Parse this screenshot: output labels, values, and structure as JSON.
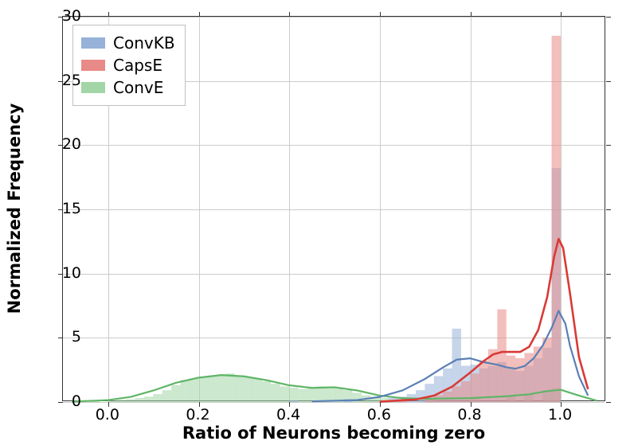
{
  "chart": {
    "type": "histogram-with-kde",
    "xlabel": "Ratio of Neurons becoming zero",
    "ylabel": "Normalized Frequency",
    "label_fontsize": 21,
    "label_fontweight": "bold",
    "tick_fontsize": 19,
    "xlim": [
      -0.1,
      1.1
    ],
    "ylim": [
      0,
      30
    ],
    "xticks": [
      0.0,
      0.2,
      0.4,
      0.6,
      0.8,
      1.0
    ],
    "yticks": [
      0,
      5,
      10,
      15,
      20,
      25,
      30
    ],
    "background_color": "#ffffff",
    "grid_color": "#cccccc",
    "border_color": "#333333",
    "legend": {
      "position": "upper-left",
      "items": [
        {
          "label": "ConvKB",
          "color": "#97b2d8"
        },
        {
          "label": "CapsE",
          "color": "#e88a87"
        },
        {
          "label": "ConvE",
          "color": "#a2d6a6"
        }
      ]
    },
    "series": {
      "ConvKB": {
        "hist_color": "#97b2d8",
        "hist_alpha": 0.55,
        "kde_color": "#5a7fb5",
        "kde_width": 2.2,
        "bins": [
          {
            "x0": 0.4,
            "x1": 0.42,
            "y": 0.1
          },
          {
            "x0": 0.52,
            "x1": 0.54,
            "y": 0.2
          },
          {
            "x0": 0.62,
            "x1": 0.64,
            "y": 0.3
          },
          {
            "x0": 0.64,
            "x1": 0.66,
            "y": 0.4
          },
          {
            "x0": 0.66,
            "x1": 0.68,
            "y": 0.6
          },
          {
            "x0": 0.68,
            "x1": 0.7,
            "y": 0.9
          },
          {
            "x0": 0.7,
            "x1": 0.72,
            "y": 1.4
          },
          {
            "x0": 0.72,
            "x1": 0.74,
            "y": 2.0
          },
          {
            "x0": 0.74,
            "x1": 0.76,
            "y": 2.6
          },
          {
            "x0": 0.76,
            "x1": 0.78,
            "y": 5.7
          },
          {
            "x0": 0.78,
            "x1": 0.8,
            "y": 2.8
          },
          {
            "x0": 0.8,
            "x1": 0.82,
            "y": 2.9
          },
          {
            "x0": 0.82,
            "x1": 0.84,
            "y": 2.6
          },
          {
            "x0": 0.84,
            "x1": 0.86,
            "y": 2.8
          },
          {
            "x0": 0.86,
            "x1": 0.88,
            "y": 3.1
          },
          {
            "x0": 0.88,
            "x1": 0.9,
            "y": 2.6
          },
          {
            "x0": 0.9,
            "x1": 0.92,
            "y": 2.4
          },
          {
            "x0": 0.92,
            "x1": 0.94,
            "y": 2.8
          },
          {
            "x0": 0.94,
            "x1": 0.96,
            "y": 3.4
          },
          {
            "x0": 0.96,
            "x1": 0.98,
            "y": 4.2
          },
          {
            "x0": 0.98,
            "x1": 1.0,
            "y": 18.2
          }
        ],
        "kde": [
          {
            "x": 0.45,
            "y": 0.05
          },
          {
            "x": 0.55,
            "y": 0.15
          },
          {
            "x": 0.6,
            "y": 0.4
          },
          {
            "x": 0.65,
            "y": 0.9
          },
          {
            "x": 0.7,
            "y": 1.8
          },
          {
            "x": 0.74,
            "y": 2.7
          },
          {
            "x": 0.77,
            "y": 3.3
          },
          {
            "x": 0.8,
            "y": 3.4
          },
          {
            "x": 0.83,
            "y": 3.1
          },
          {
            "x": 0.86,
            "y": 2.9
          },
          {
            "x": 0.88,
            "y": 2.7
          },
          {
            "x": 0.9,
            "y": 2.6
          },
          {
            "x": 0.92,
            "y": 2.8
          },
          {
            "x": 0.94,
            "y": 3.4
          },
          {
            "x": 0.96,
            "y": 4.4
          },
          {
            "x": 0.98,
            "y": 5.8
          },
          {
            "x": 0.995,
            "y": 7.1
          },
          {
            "x": 1.01,
            "y": 6.1
          },
          {
            "x": 1.02,
            "y": 4.4
          },
          {
            "x": 1.04,
            "y": 2.0
          },
          {
            "x": 1.06,
            "y": 0.5
          }
        ]
      },
      "CapsE": {
        "hist_color": "#e88a87",
        "hist_alpha": 0.55,
        "kde_color": "#d93a36",
        "kde_width": 2.6,
        "bins": [
          {
            "x0": 0.64,
            "x1": 0.66,
            "y": 0.15
          },
          {
            "x0": 0.7,
            "x1": 0.72,
            "y": 0.3
          },
          {
            "x0": 0.72,
            "x1": 0.74,
            "y": 0.5
          },
          {
            "x0": 0.74,
            "x1": 0.76,
            "y": 0.8
          },
          {
            "x0": 0.76,
            "x1": 0.78,
            "y": 1.2
          },
          {
            "x0": 0.78,
            "x1": 0.8,
            "y": 1.6
          },
          {
            "x0": 0.8,
            "x1": 0.82,
            "y": 2.2
          },
          {
            "x0": 0.82,
            "x1": 0.84,
            "y": 3.2
          },
          {
            "x0": 0.84,
            "x1": 0.86,
            "y": 4.1
          },
          {
            "x0": 0.86,
            "x1": 0.88,
            "y": 7.2
          },
          {
            "x0": 0.88,
            "x1": 0.9,
            "y": 3.6
          },
          {
            "x0": 0.9,
            "x1": 0.92,
            "y": 3.4
          },
          {
            "x0": 0.92,
            "x1": 0.94,
            "y": 3.8
          },
          {
            "x0": 0.94,
            "x1": 0.96,
            "y": 4.3
          },
          {
            "x0": 0.96,
            "x1": 0.98,
            "y": 5.0
          },
          {
            "x0": 0.98,
            "x1": 1.0,
            "y": 28.5
          }
        ],
        "kde": [
          {
            "x": 0.6,
            "y": 0.03
          },
          {
            "x": 0.68,
            "y": 0.2
          },
          {
            "x": 0.72,
            "y": 0.5
          },
          {
            "x": 0.76,
            "y": 1.2
          },
          {
            "x": 0.8,
            "y": 2.3
          },
          {
            "x": 0.83,
            "y": 3.2
          },
          {
            "x": 0.85,
            "y": 3.7
          },
          {
            "x": 0.87,
            "y": 3.9
          },
          {
            "x": 0.89,
            "y": 3.9
          },
          {
            "x": 0.91,
            "y": 3.9
          },
          {
            "x": 0.93,
            "y": 4.3
          },
          {
            "x": 0.95,
            "y": 5.6
          },
          {
            "x": 0.97,
            "y": 8.2
          },
          {
            "x": 0.985,
            "y": 11.3
          },
          {
            "x": 0.995,
            "y": 12.7
          },
          {
            "x": 1.005,
            "y": 12.0
          },
          {
            "x": 1.02,
            "y": 8.5
          },
          {
            "x": 1.04,
            "y": 3.5
          },
          {
            "x": 1.06,
            "y": 1.0
          }
        ]
      },
      "ConvE": {
        "hist_color": "#a2d6a6",
        "hist_alpha": 0.55,
        "kde_color": "#5fb567",
        "kde_width": 2.2,
        "bins": [
          {
            "x0": -0.04,
            "x1": -0.02,
            "y": 0.1
          },
          {
            "x0": 0.0,
            "x1": 0.02,
            "y": 0.1
          },
          {
            "x0": 0.02,
            "x1": 0.04,
            "y": 0.15
          },
          {
            "x0": 0.04,
            "x1": 0.06,
            "y": 0.2
          },
          {
            "x0": 0.06,
            "x1": 0.08,
            "y": 0.3
          },
          {
            "x0": 0.08,
            "x1": 0.1,
            "y": 0.4
          },
          {
            "x0": 0.1,
            "x1": 0.12,
            "y": 0.6
          },
          {
            "x0": 0.12,
            "x1": 0.14,
            "y": 0.9
          },
          {
            "x0": 0.14,
            "x1": 0.16,
            "y": 1.3
          },
          {
            "x0": 0.16,
            "x1": 0.18,
            "y": 1.7
          },
          {
            "x0": 0.18,
            "x1": 0.2,
            "y": 1.8
          },
          {
            "x0": 0.2,
            "x1": 0.22,
            "y": 1.9
          },
          {
            "x0": 0.22,
            "x1": 0.24,
            "y": 2.0
          },
          {
            "x0": 0.24,
            "x1": 0.26,
            "y": 2.1
          },
          {
            "x0": 0.26,
            "x1": 0.28,
            "y": 2.2
          },
          {
            "x0": 0.28,
            "x1": 0.3,
            "y": 2.0
          },
          {
            "x0": 0.3,
            "x1": 0.32,
            "y": 1.9
          },
          {
            "x0": 0.32,
            "x1": 0.34,
            "y": 1.8
          },
          {
            "x0": 0.34,
            "x1": 0.36,
            "y": 1.6
          },
          {
            "x0": 0.36,
            "x1": 0.38,
            "y": 1.4
          },
          {
            "x0": 0.38,
            "x1": 0.4,
            "y": 1.2
          },
          {
            "x0": 0.4,
            "x1": 0.42,
            "y": 1.1
          },
          {
            "x0": 0.42,
            "x1": 0.44,
            "y": 1.0
          },
          {
            "x0": 0.44,
            "x1": 0.46,
            "y": 1.1
          },
          {
            "x0": 0.46,
            "x1": 0.48,
            "y": 1.2
          },
          {
            "x0": 0.48,
            "x1": 0.5,
            "y": 1.2
          },
          {
            "x0": 0.5,
            "x1": 0.52,
            "y": 1.1
          },
          {
            "x0": 0.52,
            "x1": 0.54,
            "y": 0.9
          },
          {
            "x0": 0.54,
            "x1": 0.56,
            "y": 0.7
          },
          {
            "x0": 0.56,
            "x1": 0.58,
            "y": 0.5
          },
          {
            "x0": 0.58,
            "x1": 0.6,
            "y": 0.4
          },
          {
            "x0": 0.6,
            "x1": 0.62,
            "y": 0.3
          },
          {
            "x0": 0.7,
            "x1": 0.72,
            "y": 0.2
          },
          {
            "x0": 0.8,
            "x1": 0.82,
            "y": 0.3
          },
          {
            "x0": 0.88,
            "x1": 0.9,
            "y": 0.4
          },
          {
            "x0": 0.92,
            "x1": 0.94,
            "y": 0.6
          },
          {
            "x0": 0.96,
            "x1": 0.98,
            "y": 0.9
          },
          {
            "x0": 0.98,
            "x1": 1.0,
            "y": 1.1
          }
        ],
        "kde": [
          {
            "x": -0.08,
            "y": 0.03
          },
          {
            "x": 0.0,
            "y": 0.15
          },
          {
            "x": 0.05,
            "y": 0.4
          },
          {
            "x": 0.1,
            "y": 0.9
          },
          {
            "x": 0.15,
            "y": 1.5
          },
          {
            "x": 0.2,
            "y": 1.9
          },
          {
            "x": 0.25,
            "y": 2.1
          },
          {
            "x": 0.3,
            "y": 2.0
          },
          {
            "x": 0.35,
            "y": 1.7
          },
          {
            "x": 0.4,
            "y": 1.3
          },
          {
            "x": 0.45,
            "y": 1.1
          },
          {
            "x": 0.5,
            "y": 1.15
          },
          {
            "x": 0.55,
            "y": 0.9
          },
          {
            "x": 0.6,
            "y": 0.5
          },
          {
            "x": 0.65,
            "y": 0.3
          },
          {
            "x": 0.7,
            "y": 0.25
          },
          {
            "x": 0.8,
            "y": 0.3
          },
          {
            "x": 0.88,
            "y": 0.45
          },
          {
            "x": 0.93,
            "y": 0.6
          },
          {
            "x": 0.97,
            "y": 0.85
          },
          {
            "x": 1.0,
            "y": 0.95
          },
          {
            "x": 1.04,
            "y": 0.5
          },
          {
            "x": 1.08,
            "y": 0.1
          }
        ]
      }
    }
  }
}
